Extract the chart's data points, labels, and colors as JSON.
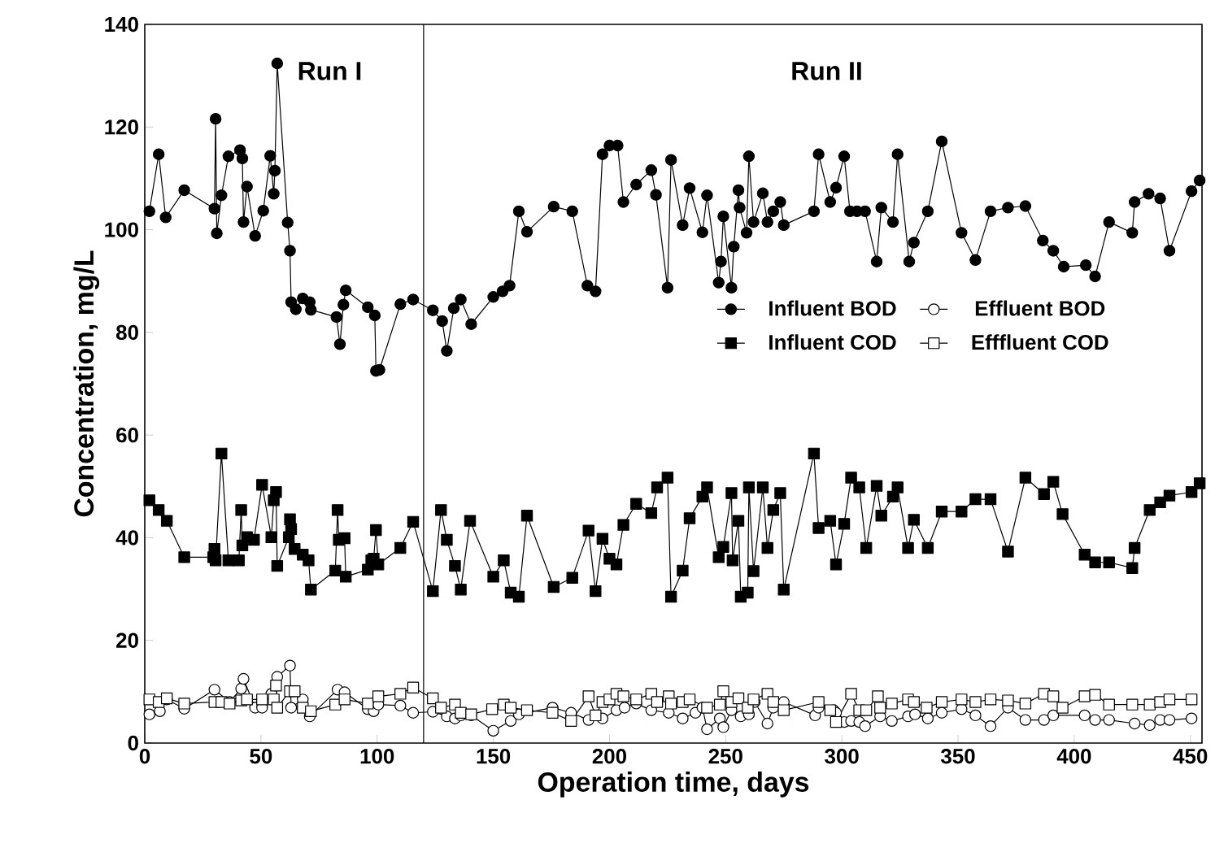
{
  "chart_data": {
    "type": "line",
    "xlabel": "Operation time, days",
    "ylabel": "Concentration, mg/L",
    "xlim": [
      0,
      455
    ],
    "ylim": [
      0,
      140
    ],
    "xticks": [
      0,
      50,
      100,
      150,
      200,
      250,
      300,
      350,
      400,
      450
    ],
    "yticks": [
      0,
      20,
      40,
      60,
      80,
      100,
      120,
      140
    ],
    "legend": "right",
    "ref_lines": [
      {
        "axis": "x",
        "value": 120,
        "color": "#000000"
      }
    ],
    "annotations": [
      "Run I",
      "Run II"
    ],
    "series": [
      {
        "name": "Influent BOD",
        "color": "#000000",
        "marker": "circle",
        "x": [
          2,
          6,
          9,
          17,
          30,
          30.5,
          31,
          33,
          36,
          41,
          42,
          42.5,
          44,
          47.5,
          51,
          54,
          55.5,
          56,
          57,
          61.5,
          62.5,
          63,
          65,
          68,
          71,
          71.5,
          82.5,
          84,
          85.5,
          86.5,
          96,
          99,
          99.5,
          101,
          110,
          115.5,
          124,
          128,
          130,
          133,
          136,
          140.5,
          150,
          154,
          157,
          161,
          164.5,
          176,
          184,
          190.5,
          194,
          197,
          200,
          203.5,
          206,
          211.5,
          218,
          220,
          225,
          226.5,
          231.5,
          234.5,
          240,
          242,
          247,
          248,
          249,
          252.5,
          253.5,
          255.5,
          256,
          259,
          260,
          262,
          266,
          268,
          270.5,
          273.5,
          275,
          288,
          290,
          295,
          297.5,
          301,
          303.5,
          306.5,
          310,
          315,
          317,
          322,
          324,
          329,
          331,
          337,
          343,
          351.5,
          357.5,
          364,
          371.5,
          379,
          386.5,
          391,
          395.5,
          405,
          409,
          415,
          425,
          426,
          432,
          437,
          441,
          450.5,
          454
        ],
        "values": [
          103.6,
          114.7,
          102.4,
          107.7,
          104.1,
          121.6,
          99.3,
          106.7,
          114.3,
          115.5,
          113.9,
          101.5,
          108.4,
          98.8,
          103.7,
          114.4,
          107,
          111.5,
          132.4,
          101.4,
          95.9,
          85.9,
          84.5,
          86.6,
          85.9,
          84.4,
          83,
          77.7,
          85.4,
          88.2,
          84.9,
          83.3,
          72.5,
          72.7,
          85.5,
          86.4,
          84.3,
          82.2,
          76.4,
          84.7,
          86.4,
          81.6,
          86.9,
          88,
          89.1,
          103.6,
          99.6,
          104.5,
          103.6,
          89.1,
          88,
          114.7,
          116.4,
          116.4,
          105.4,
          108.8,
          111.6,
          106.8,
          88.7,
          113.6,
          100.9,
          108.1,
          99.5,
          106.7,
          89.7,
          93.8,
          102.6,
          88.7,
          96.7,
          107.7,
          104.3,
          99.4,
          114.3,
          101.5,
          107.1,
          101.5,
          103.6,
          105.4,
          100.9,
          103.6,
          114.7,
          105.4,
          108.2,
          114.3,
          103.6,
          103.6,
          103.6,
          93.8,
          104.3,
          101.5,
          114.7,
          93.8,
          97.5,
          103.6,
          117.2,
          99.4,
          94.1,
          103.6,
          104.3,
          104.6,
          97.9,
          95.9,
          92.8,
          93.1,
          90.9,
          101.5,
          99.4,
          105.4,
          107,
          106.1,
          95.9,
          107.5,
          109.6
        ]
      },
      {
        "name": "Effluent BOD",
        "color": "#ffffff",
        "marker": "circle",
        "x": [
          2,
          6.5,
          9.5,
          17,
          30,
          36.5,
          41.5,
          42.5,
          47.5,
          50.5,
          54.5,
          57,
          62.5,
          63,
          68,
          71,
          83,
          86,
          96,
          98.5,
          100.5,
          110,
          115.5,
          124,
          130,
          133.5,
          136,
          140.5,
          150,
          157.5,
          161,
          175.5,
          183.5,
          191,
          197,
          203,
          206.5,
          211.5,
          218,
          225.5,
          231.5,
          237,
          240,
          242,
          247.5,
          249,
          252.5,
          256.5,
          260,
          262.5,
          268,
          270.5,
          275,
          288.5,
          290,
          296.5,
          297.5,
          301,
          304,
          307.5,
          310,
          316.5,
          321.5,
          328.5,
          331.5,
          337,
          343,
          351.5,
          357.5,
          364,
          371.5,
          379,
          387,
          391,
          404.5,
          409,
          415,
          426,
          432.5,
          437,
          441,
          450.5
        ],
        "values": [
          5.6,
          6.2,
          8.5,
          6.7,
          10.4,
          8,
          10.6,
          12.5,
          6.9,
          6.9,
          9.6,
          12.9,
          15.1,
          6.9,
          8.5,
          5.2,
          10.4,
          9.9,
          6.6,
          6.2,
          7.5,
          7.3,
          5.9,
          6.1,
          5.2,
          4.8,
          5.4,
          5.4,
          2.4,
          4.3,
          5.6,
          6.9,
          5.9,
          4.5,
          4.8,
          6.4,
          6.9,
          7.7,
          6.4,
          5.9,
          4.8,
          5.9,
          6.9,
          2.7,
          4.8,
          3.1,
          6.4,
          5.2,
          5.6,
          8,
          3.8,
          6.9,
          8,
          5.4,
          6.9,
          6.4,
          5.9,
          4.1,
          4.3,
          4.1,
          3.3,
          5.2,
          4.3,
          5.2,
          5.6,
          4.8,
          5.9,
          6.6,
          5.4,
          3.3,
          6.9,
          4.5,
          4.5,
          5.4,
          5.4,
          4.5,
          4.5,
          3.8,
          3.5,
          4.5,
          4.5,
          4.8
        ]
      },
      {
        "name": "Influent COD",
        "color": "#000000",
        "marker": "square",
        "x": [
          2,
          6,
          9.5,
          17,
          29.5,
          30,
          30.5,
          33,
          36,
          40.5,
          41.5,
          42,
          44,
          47,
          50.5,
          54.5,
          55.5,
          56.5,
          57,
          62,
          62.5,
          63,
          64.5,
          68,
          70.5,
          71.5,
          82,
          83,
          83.5,
          86,
          86.5,
          96,
          97.5,
          98.5,
          99.5,
          100.5,
          110,
          115.5,
          124,
          127.5,
          130,
          133.5,
          136,
          140,
          150,
          154.5,
          157.5,
          161,
          164.5,
          176,
          184,
          191,
          194,
          197,
          200,
          203,
          206,
          211.5,
          218,
          220.5,
          225,
          226.5,
          231.5,
          234.5,
          240,
          242,
          247,
          249,
          252.5,
          253,
          255.5,
          256.5,
          259.5,
          260,
          262,
          266,
          268,
          270.5,
          273.5,
          275,
          288,
          290,
          295,
          297.5,
          301,
          304,
          307.5,
          310.5,
          315,
          317,
          322,
          324,
          328.5,
          331,
          337,
          343,
          351.5,
          357.5,
          364,
          371.5,
          379,
          387,
          391,
          395,
          404.5,
          409,
          415,
          425,
          426,
          432.5,
          437,
          441,
          450.5,
          454
        ],
        "values": [
          47.3,
          45.4,
          43.3,
          36.2,
          36.2,
          37.8,
          35.6,
          56.4,
          35.6,
          35.6,
          45.4,
          38.5,
          40.1,
          39.6,
          50.3,
          40.1,
          47.3,
          48.9,
          34.5,
          40.1,
          43.6,
          41.7,
          37.8,
          36.7,
          35.6,
          29.9,
          33.6,
          45.4,
          39.6,
          39.9,
          32.4,
          33.8,
          35.6,
          35.9,
          41.5,
          34.8,
          38,
          43.1,
          29.6,
          45.4,
          39.6,
          34.5,
          29.9,
          43.3,
          32.4,
          35.6,
          29.3,
          28.5,
          44.3,
          30.4,
          32.2,
          41.4,
          29.6,
          39.8,
          35.9,
          34.8,
          42.5,
          46.6,
          44.8,
          49.8,
          51.7,
          28.5,
          33.6,
          43.8,
          48,
          49.8,
          36.2,
          38.2,
          48.7,
          35.6,
          43.3,
          28.5,
          29.3,
          49.8,
          33.5,
          49.8,
          38,
          45.4,
          48.7,
          29.9,
          56.4,
          41.9,
          43.3,
          34.8,
          42.7,
          51.7,
          49.8,
          38,
          50.1,
          44.3,
          48,
          49.8,
          38,
          43.5,
          38,
          45.1,
          45.1,
          47.5,
          47.5,
          37.3,
          51.7,
          48.5,
          50.9,
          44.6,
          36.7,
          35.2,
          35.2,
          34.1,
          38,
          45.4,
          46.9,
          48.2,
          48.9,
          50.6
        ]
      },
      {
        "name": "Efffluent COD",
        "color": "#ffffff",
        "marker": "square",
        "x": [
          2,
          6,
          9.5,
          17,
          30,
          33,
          36.5,
          41.5,
          44,
          50.5,
          55.5,
          56.5,
          57,
          62.5,
          64.5,
          68,
          71.5,
          82,
          86,
          96,
          100.5,
          110,
          115.5,
          124,
          127.5,
          133.5,
          136,
          140.5,
          149.5,
          154.5,
          157.5,
          164.5,
          175.5,
          183.5,
          191,
          194,
          197,
          200,
          203,
          206,
          211.5,
          218,
          220.5,
          225.5,
          226.5,
          231.5,
          234.5,
          242,
          247.5,
          249,
          252.5,
          255.5,
          259.5,
          262,
          268,
          270.5,
          275,
          290,
          295,
          297.5,
          304,
          307.5,
          310.5,
          315.5,
          316.5,
          321.5,
          328.5,
          331,
          336.5,
          343,
          351.5,
          357.5,
          364,
          371.5,
          379,
          387,
          391,
          395,
          404.5,
          409,
          415,
          425,
          432.5,
          437,
          441,
          450.5
        ],
        "values": [
          8.5,
          8,
          8.7,
          7.7,
          8,
          8,
          7.7,
          8.3,
          8.5,
          8.5,
          8.5,
          11.2,
          6.9,
          10.1,
          10.1,
          6.9,
          6.2,
          7.5,
          8.5,
          7.7,
          9.1,
          9.6,
          10.8,
          8.7,
          6.9,
          7.5,
          5.9,
          5.6,
          6.6,
          7.5,
          6.9,
          6.4,
          5.9,
          4.3,
          9.1,
          5.4,
          8,
          8.5,
          9.6,
          9.1,
          8.5,
          9.6,
          8,
          9.1,
          7.7,
          8,
          8.5,
          6.9,
          7.5,
          10.1,
          8,
          8.7,
          6.9,
          8.5,
          9.6,
          8,
          6.4,
          8,
          6.4,
          4.1,
          9.6,
          6.4,
          6.4,
          9.1,
          6.9,
          7.7,
          8.5,
          8,
          6.9,
          8,
          8.5,
          8,
          8.5,
          8.3,
          7.7,
          9.6,
          9.1,
          6.9,
          9.1,
          9.4,
          7.5,
          7.5,
          7.5,
          8,
          8.5,
          8.5
        ]
      }
    ]
  }
}
